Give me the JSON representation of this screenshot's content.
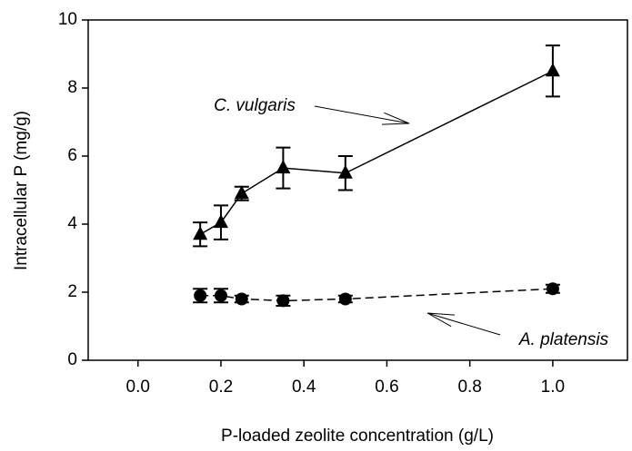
{
  "chart_data": {
    "type": "line",
    "xlabel": "P-loaded zeolite concentration (g/L)",
    "ylabel": "Intracellular P (mg/g)",
    "series": [
      {
        "name": "C. vulgaris",
        "color": "#000000",
        "marker": "triangle",
        "linestyle": "solid",
        "x": [
          0.15,
          0.2,
          0.25,
          0.35,
          0.5,
          1.0
        ],
        "values": [
          3.7,
          4.05,
          4.9,
          5.65,
          5.5,
          8.5
        ],
        "errors": [
          0.35,
          0.5,
          0.2,
          0.6,
          0.5,
          0.75
        ]
      },
      {
        "name": "A. platensis",
        "color": "#000000",
        "marker": "circle",
        "linestyle": "dashed",
        "x": [
          0.15,
          0.2,
          0.25,
          0.35,
          0.5,
          1.0
        ],
        "values": [
          1.9,
          1.9,
          1.8,
          1.75,
          1.8,
          2.1
        ],
        "errors": [
          0.2,
          0.2,
          0.1,
          0.15,
          0.1,
          0.12
        ]
      }
    ],
    "xlim": [
      -0.12,
      1.18
    ],
    "xticks": [
      {
        "value": 0,
        "label": "0.0"
      },
      0.2,
      0.4,
      0.6,
      0.8,
      {
        "value": 1,
        "label": "1.0"
      }
    ],
    "ylim": [
      0,
      10
    ],
    "yticks": [
      0,
      2,
      4,
      6,
      8,
      10
    ],
    "grid": false
  }
}
